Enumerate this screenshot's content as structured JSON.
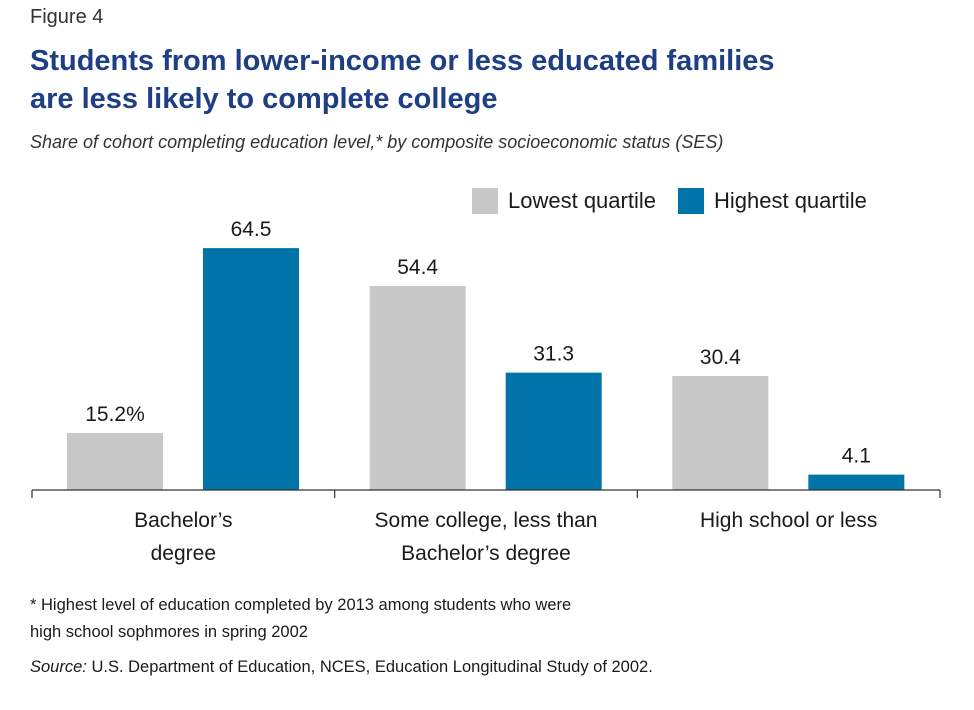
{
  "figure_label": "Figure 4",
  "title_line1": "Students from lower-income or less educated families",
  "title_line2": "are less likely to complete college",
  "subtitle": "Share of cohort completing education level,* by composite socioeconomic status (SES)",
  "footnote_line1": "* Highest level of education completed by 2013 among students who were",
  "footnote_line2": "high school sophmores in spring 2002",
  "source_label": "Source:",
  "source_text": " U.S. Department of Education, NCES, Education Longitudinal Study of 2002.",
  "colors": {
    "lowest": "#c8c8c8",
    "highest": "#0073a8",
    "title": "#1f3f84",
    "axis": "#333333"
  },
  "chart_data": {
    "type": "bar",
    "categories": [
      [
        "Bachelor’s",
        "degree"
      ],
      [
        "Some college, less than",
        "Bachelor’s degree"
      ],
      [
        "High school or less"
      ]
    ],
    "series": [
      {
        "name": "Lowest quartile",
        "values": [
          15.2,
          54.4,
          30.4
        ],
        "labels": [
          "15.2%",
          "54.4",
          "30.4"
        ]
      },
      {
        "name": "Highest quartile",
        "values": [
          64.5,
          31.3,
          4.1
        ],
        "labels": [
          "64.5",
          "31.3",
          "4.1"
        ]
      }
    ],
    "ylim": [
      0,
      70
    ],
    "grid": false,
    "legend_position": "top-right"
  }
}
